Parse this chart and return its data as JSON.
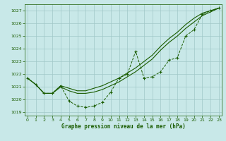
{
  "title": "Graphe pression niveau de la mer (hPa)",
  "bg_color": "#c8e8e8",
  "plot_bg_color": "#c8e8e8",
  "grid_color": "#a0c8c8",
  "line_color": "#1a5c00",
  "xlim": [
    -0.3,
    23.3
  ],
  "ylim": [
    1018.75,
    1027.5
  ],
  "yticks": [
    1019,
    1020,
    1021,
    1022,
    1023,
    1024,
    1025,
    1026,
    1027
  ],
  "xticks": [
    0,
    1,
    2,
    3,
    4,
    5,
    6,
    7,
    8,
    9,
    10,
    11,
    12,
    13,
    14,
    15,
    16,
    17,
    18,
    19,
    20,
    21,
    22,
    23
  ],
  "marker_line_x": [
    0,
    1,
    2,
    3,
    4,
    5,
    6,
    7,
    8,
    9,
    10,
    11,
    12,
    13,
    14,
    15,
    16,
    17,
    18,
    19,
    20,
    21,
    22,
    23
  ],
  "marker_line_y": [
    1021.7,
    1021.2,
    1020.5,
    1020.5,
    1021.1,
    1019.9,
    1019.5,
    1019.4,
    1019.5,
    1019.8,
    1020.6,
    1021.7,
    1022.0,
    1023.8,
    1021.7,
    1021.8,
    1022.2,
    1023.1,
    1023.3,
    1025.0,
    1025.5,
    1026.7,
    1027.0,
    1027.2
  ],
  "smooth_upper_x": [
    0,
    1,
    2,
    3,
    4,
    5,
    6,
    7,
    8,
    9,
    10,
    11,
    12,
    13,
    14,
    15,
    16,
    17,
    18,
    19,
    20,
    21,
    22,
    23
  ],
  "smooth_upper_y": [
    1021.7,
    1021.2,
    1020.5,
    1020.5,
    1021.1,
    1020.9,
    1020.7,
    1020.7,
    1020.9,
    1021.1,
    1021.4,
    1021.7,
    1022.1,
    1022.5,
    1023.0,
    1023.5,
    1024.2,
    1024.8,
    1025.3,
    1025.9,
    1026.4,
    1026.8,
    1027.0,
    1027.2
  ],
  "smooth_lower_x": [
    0,
    1,
    2,
    3,
    4,
    5,
    6,
    7,
    8,
    9,
    10,
    11,
    12,
    13,
    14,
    15,
    16,
    17,
    18,
    19,
    20,
    21,
    22,
    23
  ],
  "smooth_lower_y": [
    1021.7,
    1021.2,
    1020.5,
    1020.5,
    1021.0,
    1020.7,
    1020.5,
    1020.5,
    1020.6,
    1020.8,
    1021.1,
    1021.4,
    1021.8,
    1022.2,
    1022.7,
    1023.2,
    1023.9,
    1024.5,
    1025.0,
    1025.6,
    1026.1,
    1026.6,
    1026.9,
    1027.2
  ]
}
